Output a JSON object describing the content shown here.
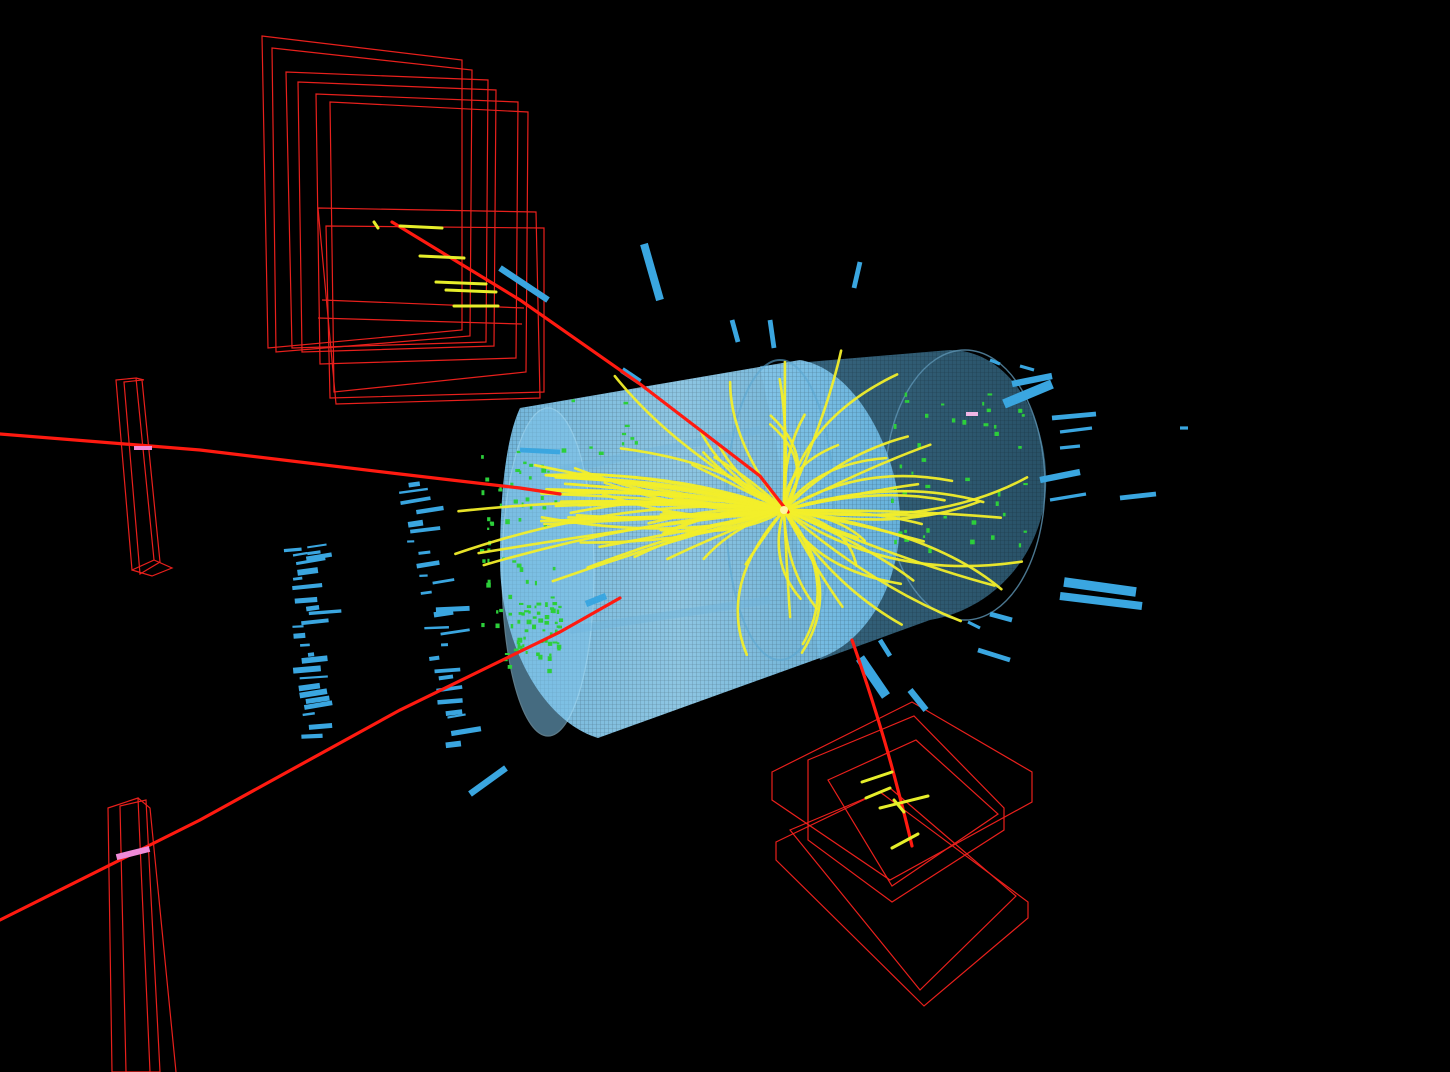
{
  "scene": {
    "kind": "particle-collision-event-display",
    "colors": {
      "background": "#000000",
      "muon_track": "#ff1a10",
      "charged_track": "#f2ee2a",
      "muon_chamber": "#e8201c",
      "calorimeter_tower": "#3aa6e0",
      "tracker_hit": "#2ccf3a",
      "barrel_near": "#8fd2f5",
      "barrel_far": "#4a7f9a",
      "chamber_hit": "#f08ad8"
    },
    "visible_text": []
  }
}
